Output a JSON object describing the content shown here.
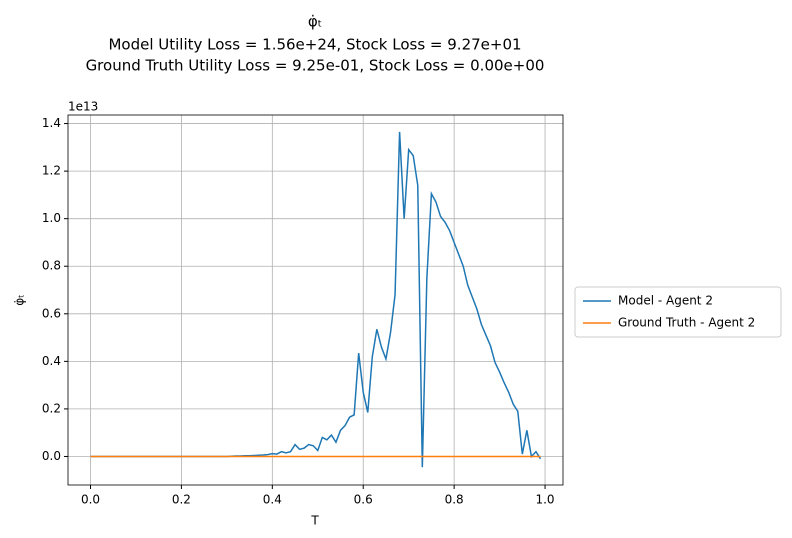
{
  "chart_data": {
    "type": "line",
    "title": "φ̇ₜ",
    "subtitle": [
      "Model Utility Loss = 1.56e+24, Stock Loss = 9.27e+01",
      "Ground Truth Utility Loss = 9.25e-01, Stock Loss = 0.00e+00"
    ],
    "x_label": "T",
    "y_label": "φ̇ₜ",
    "y_offset_label": "1e13",
    "x": [
      0,
      0.01,
      0.02,
      0.03,
      0.04,
      0.05,
      0.06,
      0.07,
      0.08,
      0.09,
      0.1,
      0.11,
      0.12,
      0.13,
      0.14,
      0.15,
      0.16,
      0.17,
      0.18,
      0.19,
      0.2,
      0.21,
      0.22,
      0.23,
      0.24,
      0.25,
      0.26,
      0.27,
      0.28,
      0.29,
      0.3,
      0.31,
      0.32,
      0.33,
      0.34,
      0.35,
      0.36,
      0.37,
      0.38,
      0.39,
      0.4,
      0.41,
      0.42,
      0.43,
      0.44,
      0.45,
      0.46,
      0.47,
      0.48,
      0.49,
      0.5,
      0.51,
      0.52,
      0.53,
      0.54,
      0.55,
      0.56,
      0.57,
      0.58,
      0.59,
      0.6,
      0.61,
      0.62,
      0.63,
      0.64,
      0.65,
      0.66,
      0.67,
      0.68,
      0.69,
      0.7,
      0.71,
      0.72,
      0.73,
      0.74,
      0.75,
      0.76,
      0.77,
      0.78,
      0.79,
      0.8,
      0.81,
      0.82,
      0.83,
      0.84,
      0.85,
      0.86,
      0.87,
      0.88,
      0.89,
      0.9,
      0.91,
      0.92,
      0.93,
      0.94,
      0.95,
      0.96,
      0.97,
      0.98,
      0.99
    ],
    "series": [
      {
        "name": "Model - Agent 2",
        "color": "#1f77b4",
        "values": [
          0,
          0,
          0,
          0,
          0,
          0,
          0,
          0,
          0,
          0,
          0,
          0,
          0,
          0,
          0,
          0,
          0,
          0,
          0,
          0,
          0,
          0,
          0,
          0,
          0,
          0,
          0,
          0,
          0,
          0,
          0,
          0.001,
          0.002,
          0.002,
          0.003,
          0.003,
          0.004,
          0.005,
          0.006,
          0.008,
          0.012,
          0.01,
          0.02,
          0.015,
          0.02,
          0.05,
          0.03,
          0.035,
          0.05,
          0.045,
          0.025,
          0.08,
          0.07,
          0.09,
          0.06,
          0.11,
          0.13,
          0.165,
          0.175,
          0.435,
          0.27,
          0.185,
          0.42,
          0.535,
          0.46,
          0.41,
          0.52,
          0.68,
          1.365,
          1.0,
          1.29,
          1.265,
          1.14,
          -0.045,
          0.75,
          1.105,
          1.07,
          1.01,
          0.985,
          0.95,
          0.9,
          0.85,
          0.8,
          0.72,
          0.67,
          0.62,
          0.555,
          0.51,
          0.465,
          0.395,
          0.355,
          0.31,
          0.27,
          0.22,
          0.19,
          0.01,
          0.11,
          0.0,
          0.02,
          -0.01
        ]
      },
      {
        "name": "Ground Truth - Agent 2",
        "color": "#ff7f0e",
        "values": [
          0,
          0,
          0,
          0,
          0,
          0,
          0,
          0,
          0,
          0,
          0,
          0,
          0,
          0,
          0,
          0,
          0,
          0,
          0,
          0,
          0,
          0,
          0,
          0,
          0,
          0,
          0,
          0,
          0,
          0,
          0,
          0,
          0,
          0,
          0,
          0,
          0,
          0,
          0,
          0,
          0,
          0,
          0,
          0,
          0,
          0,
          0,
          0,
          0,
          0,
          0,
          0,
          0,
          0,
          0,
          0,
          0,
          0,
          0,
          0,
          0,
          0,
          0,
          0,
          0,
          0,
          0,
          0,
          0,
          0,
          0,
          0,
          0,
          0,
          0,
          0,
          0,
          0,
          0,
          0,
          0,
          0,
          0,
          0,
          0,
          0,
          0,
          0,
          0,
          0,
          0,
          0,
          0,
          0,
          0,
          0,
          0,
          0,
          0,
          0
        ]
      }
    ],
    "xlim": [
      -0.0495,
      1.0395
    ],
    "xticks": [
      {
        "value": 0,
        "label": "0.0"
      },
      0.2,
      0.4,
      0.6,
      0.8,
      {
        "value": 1,
        "label": "1.0"
      }
    ],
    "ylim": [
      -0.12,
      1.436
    ],
    "yticks": [
      {
        "value": 0,
        "label": "0.0"
      },
      0.2,
      0.4,
      0.6,
      0.8,
      {
        "value": 1,
        "label": "1.0"
      },
      1.2,
      1.4
    ],
    "grid": true,
    "legend": "outside right"
  }
}
